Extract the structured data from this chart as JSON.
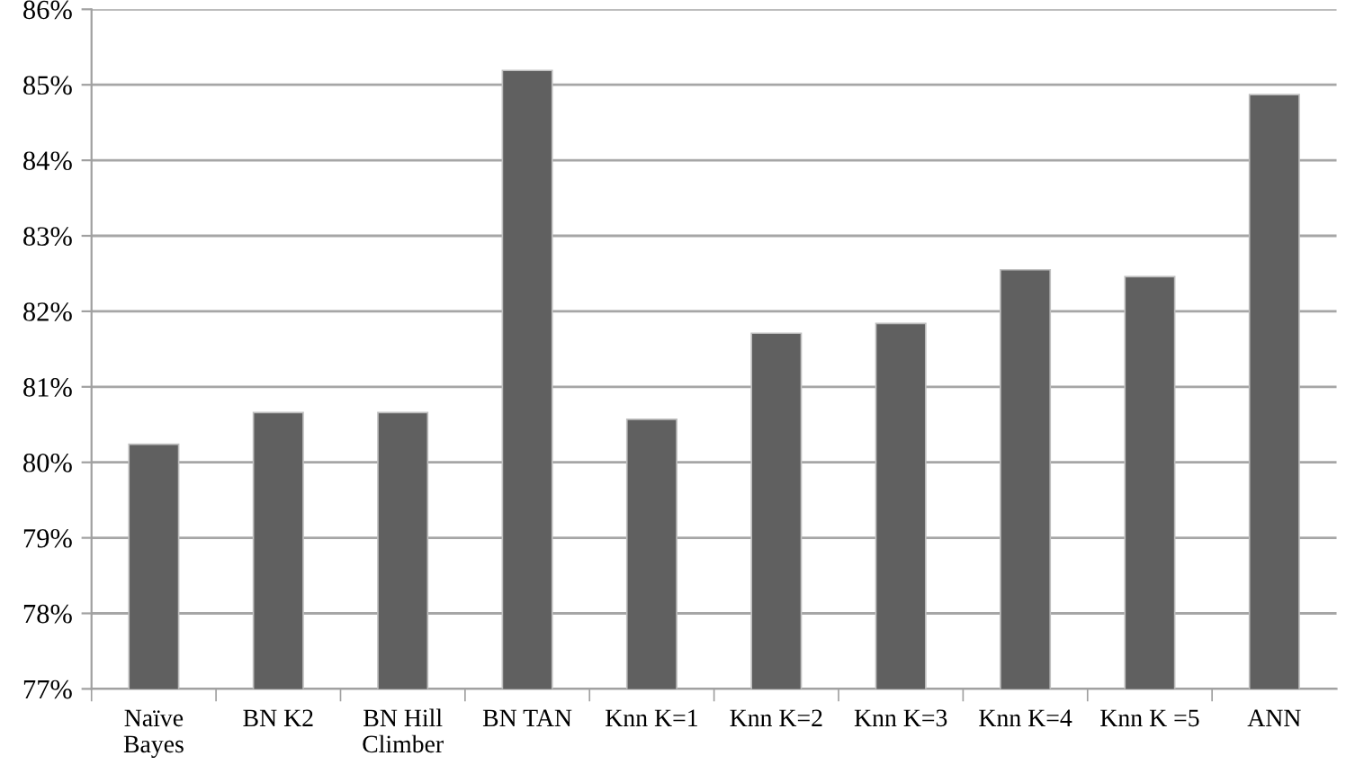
{
  "chart_data": {
    "type": "bar",
    "categories": [
      "Naïve\nBayes",
      "BN K2",
      "BN Hill\nClimber",
      "BN TAN",
      "Knn K=1",
      "Knn K=2",
      "Knn K=3",
      "Knn K=4",
      "Knn K =5",
      "ANN"
    ],
    "values": [
      80.24,
      80.66,
      80.66,
      85.19,
      80.57,
      81.71,
      81.84,
      82.55,
      82.46,
      84.87
    ],
    "color": "#606060",
    "ylim": [
      77,
      86
    ],
    "yticks": [
      {
        "value": 77,
        "label": "77%"
      },
      {
        "value": 78,
        "label": "78%"
      },
      {
        "value": 79,
        "label": "79%"
      },
      {
        "value": 80,
        "label": "80%"
      },
      {
        "value": 81,
        "label": "81%"
      },
      {
        "value": 82,
        "label": "82%"
      },
      {
        "value": 83,
        "label": "83%"
      },
      {
        "value": 84,
        "label": "84%"
      },
      {
        "value": 85,
        "label": "85%"
      },
      {
        "value": 86,
        "label": "86%"
      }
    ],
    "grid": "y"
  }
}
